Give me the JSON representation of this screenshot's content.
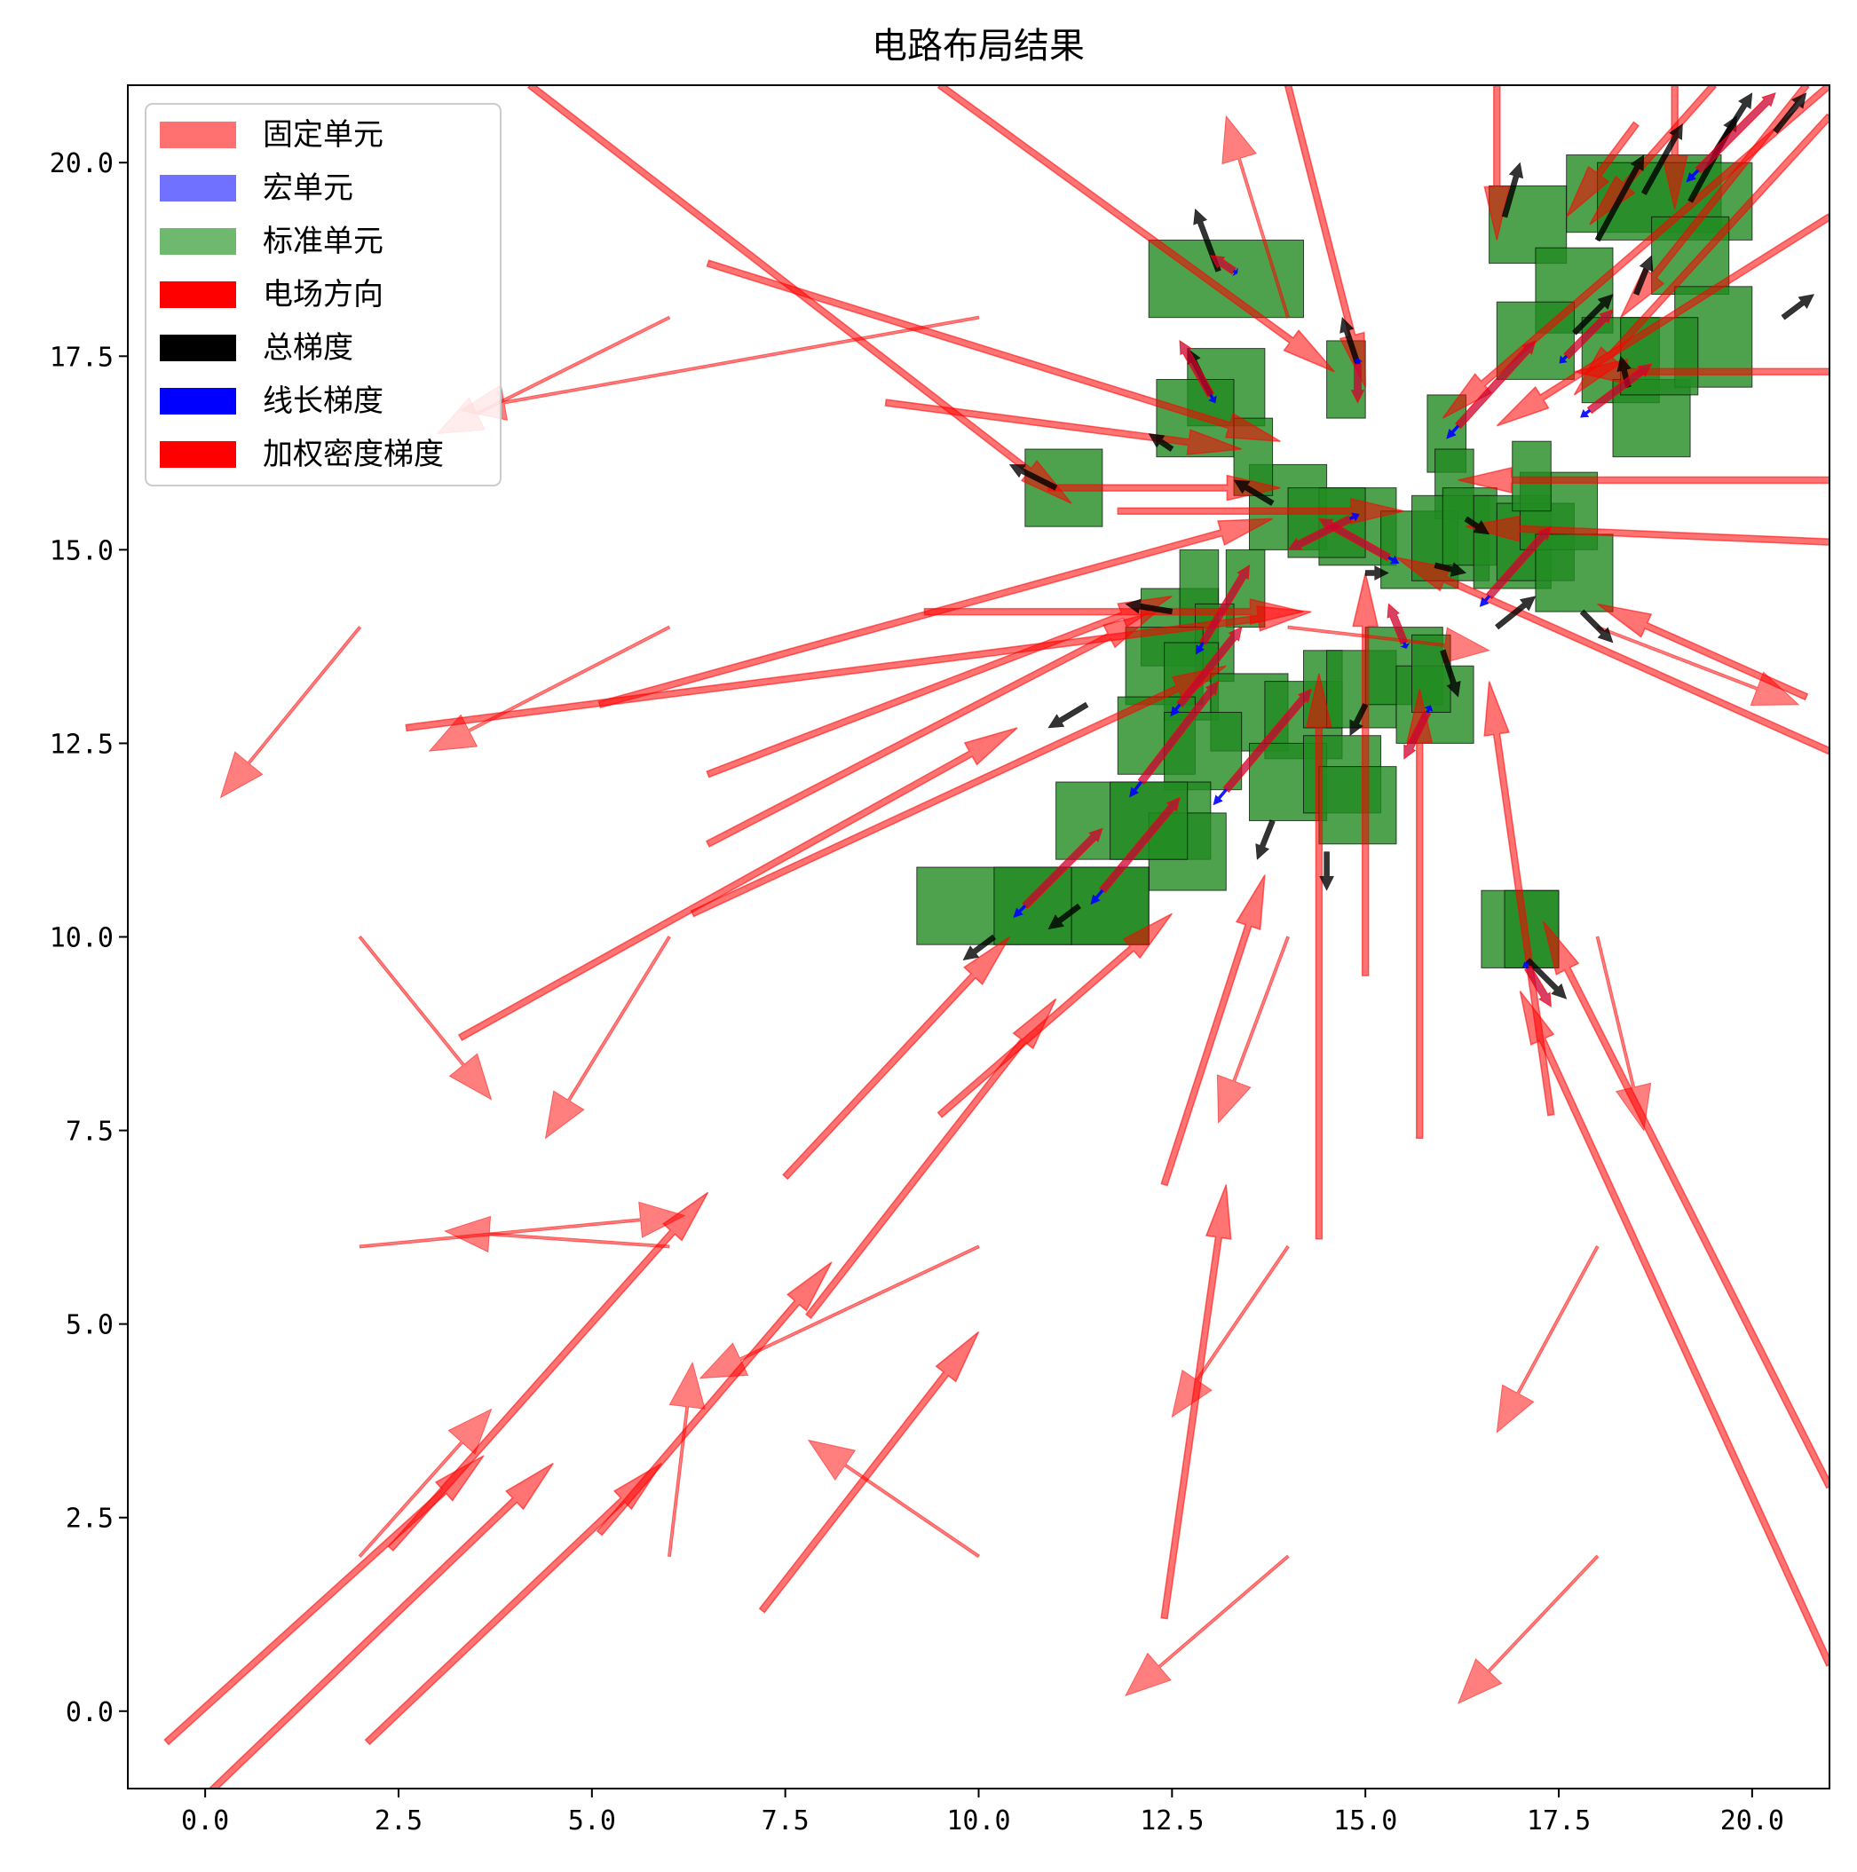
{
  "chart_data": {
    "type": "quiver",
    "title": "电路布局结果",
    "xlabel": "",
    "ylabel": "",
    "xlim": [
      -1,
      21
    ],
    "ylim": [
      -1,
      21
    ],
    "grid": false,
    "x_ticks": [
      0,
      2.5,
      5,
      7.5,
      10,
      12.5,
      15,
      17.5,
      20
    ],
    "y_ticks": [
      0,
      2.5,
      5,
      7.5,
      10,
      12.5,
      15,
      17.5,
      20
    ],
    "x_tick_labels": [
      "0.0",
      "2.5",
      "5.0",
      "7.5",
      "10.0",
      "12.5",
      "15.0",
      "17.5",
      "20.0"
    ],
    "y_tick_labels": [
      "0.0",
      "2.5",
      "5.0",
      "7.5",
      "10.0",
      "12.5",
      "15.0",
      "17.5",
      "20.0"
    ],
    "legend": {
      "location": "upper-left",
      "entries": [
        {
          "label": "固定单元",
          "color": "#ff4d4d",
          "kind": "patch"
        },
        {
          "label": "宏单元",
          "color": "#4d4dff",
          "kind": "patch"
        },
        {
          "label": "标准单元",
          "color": "#4aa84a",
          "kind": "patch"
        },
        {
          "label": "电场方向",
          "color": "#ff0000",
          "kind": "arrow"
        },
        {
          "label": "总梯度",
          "color": "#000000",
          "kind": "arrow"
        },
        {
          "label": "线长梯度",
          "color": "#0000ff",
          "kind": "arrow"
        },
        {
          "label": "加权密度梯度",
          "color": "#ff0000",
          "kind": "arrow"
        }
      ]
    },
    "colors": {
      "standard_cell_fill": "#228b22",
      "field_arrow": "#ff0000",
      "total_gradient": "#000000",
      "wirelength_gradient": "#0000ff"
    },
    "standard_cells": [
      [
        12.2,
        18.0,
        2.0,
        1.0
      ],
      [
        16.6,
        18.7,
        1.0,
        1.0
      ],
      [
        17.6,
        19.1,
        2.0,
        1.0
      ],
      [
        18.0,
        19.0,
        2.0,
        1.0
      ],
      [
        18.7,
        18.3,
        1.0,
        1.0
      ],
      [
        17.2,
        17.8,
        1.0,
        1.1
      ],
      [
        16.7,
        17.2,
        1.0,
        1.0
      ],
      [
        17.8,
        16.9,
        1.0,
        1.1
      ],
      [
        18.2,
        16.2,
        1.0,
        1.0
      ],
      [
        19.0,
        17.1,
        1.0,
        1.3
      ],
      [
        18.3,
        17.0,
        1.0,
        1.0
      ],
      [
        12.7,
        16.6,
        1.0,
        1.0
      ],
      [
        12.3,
        16.2,
        1.0,
        1.0
      ],
      [
        14.5,
        16.7,
        0.5,
        1.0
      ],
      [
        10.6,
        15.3,
        1.0,
        1.0
      ],
      [
        13.5,
        15.0,
        1.0,
        1.1
      ],
      [
        13.3,
        15.7,
        0.5,
        1.0
      ],
      [
        15.8,
        16.0,
        0.5,
        1.0
      ],
      [
        15.9,
        15.4,
        0.5,
        0.9
      ],
      [
        14.4,
        14.8,
        1.0,
        1.0
      ],
      [
        14.0,
        14.9,
        1.0,
        0.9
      ],
      [
        15.2,
        14.5,
        1.0,
        1.0
      ],
      [
        15.6,
        14.6,
        1.0,
        1.1
      ],
      [
        16.0,
        14.8,
        0.7,
        1.0
      ],
      [
        16.4,
        14.5,
        1.0,
        1.2
      ],
      [
        16.7,
        14.6,
        1.0,
        1.0
      ],
      [
        17.0,
        15.0,
        1.0,
        1.0
      ],
      [
        17.2,
        14.2,
        1.0,
        1.0
      ],
      [
        16.9,
        15.5,
        0.5,
        0.9
      ],
      [
        12.1,
        13.5,
        1.0,
        1.0
      ],
      [
        12.6,
        14.0,
        0.5,
        1.0
      ],
      [
        13.2,
        14.0,
        0.5,
        1.0
      ],
      [
        12.8,
        13.3,
        0.5,
        1.0
      ],
      [
        11.9,
        13.0,
        1.0,
        1.0
      ],
      [
        12.4,
        12.8,
        0.7,
        1.0
      ],
      [
        13.0,
        12.4,
        1.0,
        1.0
      ],
      [
        13.7,
        12.3,
        1.0,
        1.0
      ],
      [
        14.2,
        12.7,
        0.5,
        1.0
      ],
      [
        14.5,
        12.7,
        0.9,
        1.0
      ],
      [
        15.0,
        13.0,
        1.0,
        1.0
      ],
      [
        15.4,
        12.5,
        1.0,
        1.0
      ],
      [
        15.6,
        12.9,
        0.5,
        1.0
      ],
      [
        11.8,
        12.1,
        1.0,
        1.0
      ],
      [
        12.4,
        11.9,
        1.0,
        1.0
      ],
      [
        13.5,
        11.5,
        1.0,
        1.0
      ],
      [
        14.2,
        11.6,
        1.0,
        1.0
      ],
      [
        14.4,
        11.2,
        1.0,
        1.0
      ],
      [
        11.0,
        11.0,
        2.0,
        1.0
      ],
      [
        12.2,
        10.6,
        1.0,
        1.0
      ],
      [
        11.7,
        11.0,
        1.0,
        1.0
      ],
      [
        9.2,
        9.9,
        2.0,
        1.0
      ],
      [
        10.2,
        9.9,
        2.0,
        1.0
      ],
      [
        11.2,
        9.9,
        1.0,
        1.0
      ],
      [
        16.5,
        9.6,
        1.0,
        1.0
      ],
      [
        16.8,
        9.6,
        0.7,
        1.0
      ]
    ],
    "field_arrows": [
      [
        -0.5,
        -0.4,
        4.1,
        3.7
      ],
      [
        -0.1,
        -1.2,
        4.6,
        4.4
      ],
      [
        2.1,
        -0.4,
        3.8,
        3.6
      ],
      [
        2.4,
        2.1,
        4.1,
        4.6
      ],
      [
        5.1,
        2.3,
        3.0,
        3.5
      ],
      [
        7.2,
        1.3,
        2.8,
        3.6
      ],
      [
        7.5,
        6.9,
        2.9,
        3.1
      ],
      [
        7.8,
        5.1,
        3.2,
        4.1
      ],
      [
        9.5,
        7.7,
        3.0,
        2.6
      ],
      [
        12.4,
        6.8,
        1.3,
        4.0
      ],
      [
        12.4,
        1.2,
        0.8,
        5.6
      ],
      [
        14.4,
        6.1,
        0.0,
        7.3
      ],
      [
        15.0,
        9.5,
        0.0,
        5.2
      ],
      [
        15.7,
        7.4,
        0.0,
        5.8
      ],
      [
        17.4,
        7.7,
        -0.8,
        5.6
      ],
      [
        21.0,
        2.9,
        -3.7,
        7.3
      ],
      [
        21.0,
        0.6,
        -4.0,
        8.7
      ],
      [
        2.6,
        12.7,
        11.7,
        1.5
      ],
      [
        3.3,
        8.7,
        7.2,
        4.0
      ],
      [
        5.1,
        13.0,
        8.7,
        2.4
      ],
      [
        6.3,
        10.3,
        6.9,
        3.2
      ],
      [
        6.5,
        11.2,
        5.8,
        3.0
      ],
      [
        6.5,
        12.1,
        6.0,
        2.3
      ],
      [
        10.9,
        15.8,
        3.0,
        0.0
      ],
      [
        11.8,
        15.5,
        3.7,
        0.0
      ],
      [
        9.3,
        14.2,
        4.9,
        0.0
      ],
      [
        6.5,
        18.7,
        7.4,
        -2.3
      ],
      [
        8.8,
        16.9,
        4.6,
        -0.6
      ],
      [
        4.2,
        21.0,
        7.0,
        -5.4
      ],
      [
        9.5,
        21.0,
        5.1,
        -3.7
      ],
      [
        14.0,
        21.0,
        1.0,
        -3.9
      ],
      [
        21.0,
        15.9,
        -4.8,
        0.0
      ],
      [
        21.0,
        15.1,
        -4.7,
        0.2
      ],
      [
        21.0,
        12.4,
        -5.6,
        2.5
      ],
      [
        20.7,
        13.1,
        -2.7,
        1.2
      ],
      [
        21.0,
        19.3,
        -4.3,
        -2.7
      ],
      [
        21.0,
        21.0,
        -5.0,
        -4.3
      ],
      [
        21.0,
        20.6,
        -3.3,
        -3.6
      ],
      [
        21.0,
        17.3,
        -3.3,
        0.0
      ],
      [
        18.5,
        20.5,
        -0.9,
        -1.2
      ],
      [
        20.7,
        21.0,
        -2.4,
        -3.0
      ],
      [
        19.5,
        21.0,
        -1.6,
        -1.8
      ],
      [
        16.7,
        21.0,
        0.0,
        -2.0
      ],
      [
        19.0,
        21.0,
        0.0,
        -1.6
      ]
    ],
    "faint_arrows": [
      [
        2.0,
        14.0,
        -1.8,
        -2.2
      ],
      [
        6.0,
        14.0,
        -3.1,
        -1.6
      ],
      [
        6.0,
        18.0,
        -3.0,
        -1.5
      ],
      [
        10.0,
        18.0,
        -6.7,
        -1.2
      ],
      [
        2.0,
        10.0,
        1.7,
        -2.1
      ],
      [
        6.0,
        10.0,
        -1.6,
        -2.6
      ],
      [
        2.0,
        6.0,
        4.2,
        0.4
      ],
      [
        6.0,
        6.0,
        -2.9,
        0.2
      ],
      [
        10.0,
        6.0,
        -3.6,
        -1.7
      ],
      [
        2.0,
        2.0,
        1.7,
        1.9
      ],
      [
        6.0,
        2.0,
        0.3,
        2.5
      ],
      [
        10.0,
        2.0,
        -2.2,
        1.5
      ],
      [
        14.0,
        2.0,
        -2.1,
        -1.8
      ],
      [
        18.0,
        2.0,
        -1.8,
        -1.9
      ],
      [
        14.0,
        6.0,
        -1.5,
        -2.2
      ],
      [
        18.0,
        6.0,
        -1.3,
        -2.4
      ],
      [
        14.0,
        10.0,
        -0.9,
        -2.4
      ],
      [
        18.0,
        10.0,
        0.6,
        -2.5
      ],
      [
        14.0,
        18.0,
        -0.8,
        2.6
      ],
      [
        18.0,
        14.0,
        2.6,
        -1.0
      ],
      [
        14.0,
        14.0,
        2.6,
        -0.3
      ]
    ],
    "total_gradient_arrows": [
      [
        13.1,
        18.6,
        -0.3,
        0.8
      ],
      [
        13.0,
        17.0,
        -0.3,
        0.6
      ],
      [
        14.9,
        17.4,
        -0.2,
        0.6
      ],
      [
        16.8,
        19.3,
        0.2,
        0.7
      ],
      [
        18.6,
        19.6,
        0.5,
        0.9
      ],
      [
        19.2,
        19.5,
        0.6,
        1.1
      ],
      [
        19.5,
        20.1,
        0.5,
        0.8
      ],
      [
        20.3,
        20.4,
        0.4,
        0.5
      ],
      [
        18.0,
        19.0,
        0.6,
        1.1
      ],
      [
        18.5,
        18.3,
        0.2,
        0.5
      ],
      [
        17.7,
        17.8,
        0.5,
        0.5
      ],
      [
        20.4,
        18.0,
        0.4,
        0.3
      ],
      [
        18.4,
        17.1,
        -0.1,
        0.4
      ],
      [
        11.0,
        15.8,
        -0.6,
        0.3
      ],
      [
        12.5,
        16.3,
        -0.3,
        0.2
      ],
      [
        13.8,
        15.6,
        -0.5,
        0.3
      ],
      [
        16.0,
        13.7,
        0.2,
        -0.6
      ],
      [
        15.0,
        13.0,
        -0.2,
        -0.4
      ],
      [
        11.4,
        13.0,
        -0.5,
        -0.3
      ],
      [
        12.5,
        14.2,
        -0.6,
        0.1
      ],
      [
        14.5,
        11.1,
        0.0,
        -0.5
      ],
      [
        17.1,
        9.7,
        0.5,
        -0.5
      ],
      [
        16.7,
        14.0,
        0.5,
        0.4
      ],
      [
        17.8,
        14.2,
        0.4,
        -0.4
      ],
      [
        13.8,
        11.5,
        -0.2,
        -0.5
      ],
      [
        10.2,
        10.0,
        -0.4,
        -0.3
      ],
      [
        11.3,
        10.4,
        -0.4,
        -0.3
      ],
      [
        15.0,
        14.7,
        0.3,
        0.0
      ],
      [
        15.9,
        14.8,
        0.4,
        -0.1
      ],
      [
        16.3,
        15.4,
        0.3,
        -0.2
      ]
    ],
    "density_gradient_arrows": [
      [
        13.3,
        18.6,
        -0.3,
        0.2
      ],
      [
        13.0,
        17.0,
        -0.4,
        0.7
      ],
      [
        14.9,
        17.4,
        0.0,
        -0.5
      ],
      [
        16.2,
        16.6,
        1.0,
        1.1
      ],
      [
        17.6,
        17.5,
        0.6,
        0.6
      ],
      [
        17.9,
        16.8,
        0.8,
        0.6
      ],
      [
        16.6,
        14.4,
        0.8,
        0.9
      ],
      [
        15.3,
        14.9,
        -0.9,
        0.5
      ],
      [
        14.8,
        15.4,
        -0.8,
        -0.4
      ],
      [
        12.6,
        13.0,
        0.8,
        1.0
      ],
      [
        12.1,
        12.0,
        1.0,
        1.3
      ],
      [
        13.2,
        11.9,
        1.1,
        1.3
      ],
      [
        11.6,
        10.6,
        1.0,
        1.2
      ],
      [
        10.6,
        10.4,
        1.0,
        1.0
      ],
      [
        17.1,
        9.6,
        0.3,
        -0.5
      ],
      [
        15.8,
        12.9,
        -0.3,
        -0.6
      ],
      [
        15.5,
        13.8,
        -0.2,
        0.5
      ],
      [
        12.9,
        13.8,
        0.6,
        1.0
      ],
      [
        19.3,
        19.9,
        1.0,
        1.0
      ]
    ]
  }
}
